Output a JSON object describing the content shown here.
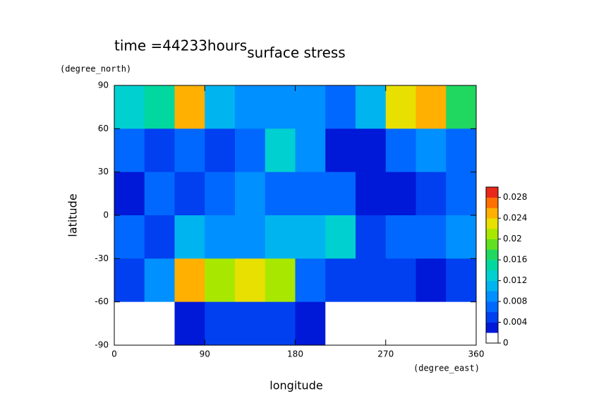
{
  "chart_data": {
    "type": "heatmap",
    "title": "surface stress",
    "annotation": "time =44233hours",
    "y_unit": "(degree_north)",
    "x_unit": "(degree_east)",
    "xlabel": "longitude",
    "ylabel": "latitude",
    "x": [
      15,
      45,
      75,
      105,
      135,
      165,
      195,
      225,
      255,
      285,
      315,
      345
    ],
    "y": [
      75,
      45,
      15,
      -15,
      -45,
      -75
    ],
    "z": [
      [
        0.012,
        0.014,
        0.024,
        0.01,
        0.008,
        0.008,
        0.008,
        0.006,
        0.01,
        0.022,
        0.024,
        0.016
      ],
      [
        0.006,
        0.004,
        0.006,
        0.004,
        0.006,
        0.012,
        0.008,
        0.002,
        0.002,
        0.006,
        0.008,
        0.006
      ],
      [
        0.002,
        0.006,
        0.004,
        0.006,
        0.008,
        0.006,
        0.006,
        0.006,
        0.002,
        0.002,
        0.004,
        0.006
      ],
      [
        0.006,
        0.004,
        0.01,
        0.008,
        0.008,
        0.01,
        0.01,
        0.012,
        0.004,
        0.006,
        0.006,
        0.008
      ],
      [
        0.004,
        0.008,
        0.024,
        0.02,
        0.022,
        0.02,
        0.006,
        0.004,
        0.004,
        0.004,
        0.002,
        0.004
      ],
      [
        0,
        0,
        0.002,
        0.004,
        0.004,
        0.004,
        0.002,
        0,
        0,
        0,
        0,
        0
      ]
    ],
    "xlim": [
      0,
      360
    ],
    "xticks": [
      0,
      90,
      180,
      270,
      360
    ],
    "ylim": [
      -90,
      90
    ],
    "yticks": [
      -90,
      -60,
      -30,
      0,
      30,
      60,
      90
    ],
    "clim": [
      0,
      0.03
    ],
    "cticks": [
      0,
      0.004,
      0.008,
      0.012,
      0.016,
      0.02,
      0.024,
      0.028
    ],
    "colors": [
      "#ffffff",
      "#0018d8",
      "#0040f0",
      "#0068ff",
      "#0090ff",
      "#00b4f0",
      "#00d0d0",
      "#00d8a0",
      "#20d860",
      "#60e020",
      "#a8e800",
      "#e8e000",
      "#ffb000",
      "#ff7000",
      "#e82818"
    ]
  }
}
